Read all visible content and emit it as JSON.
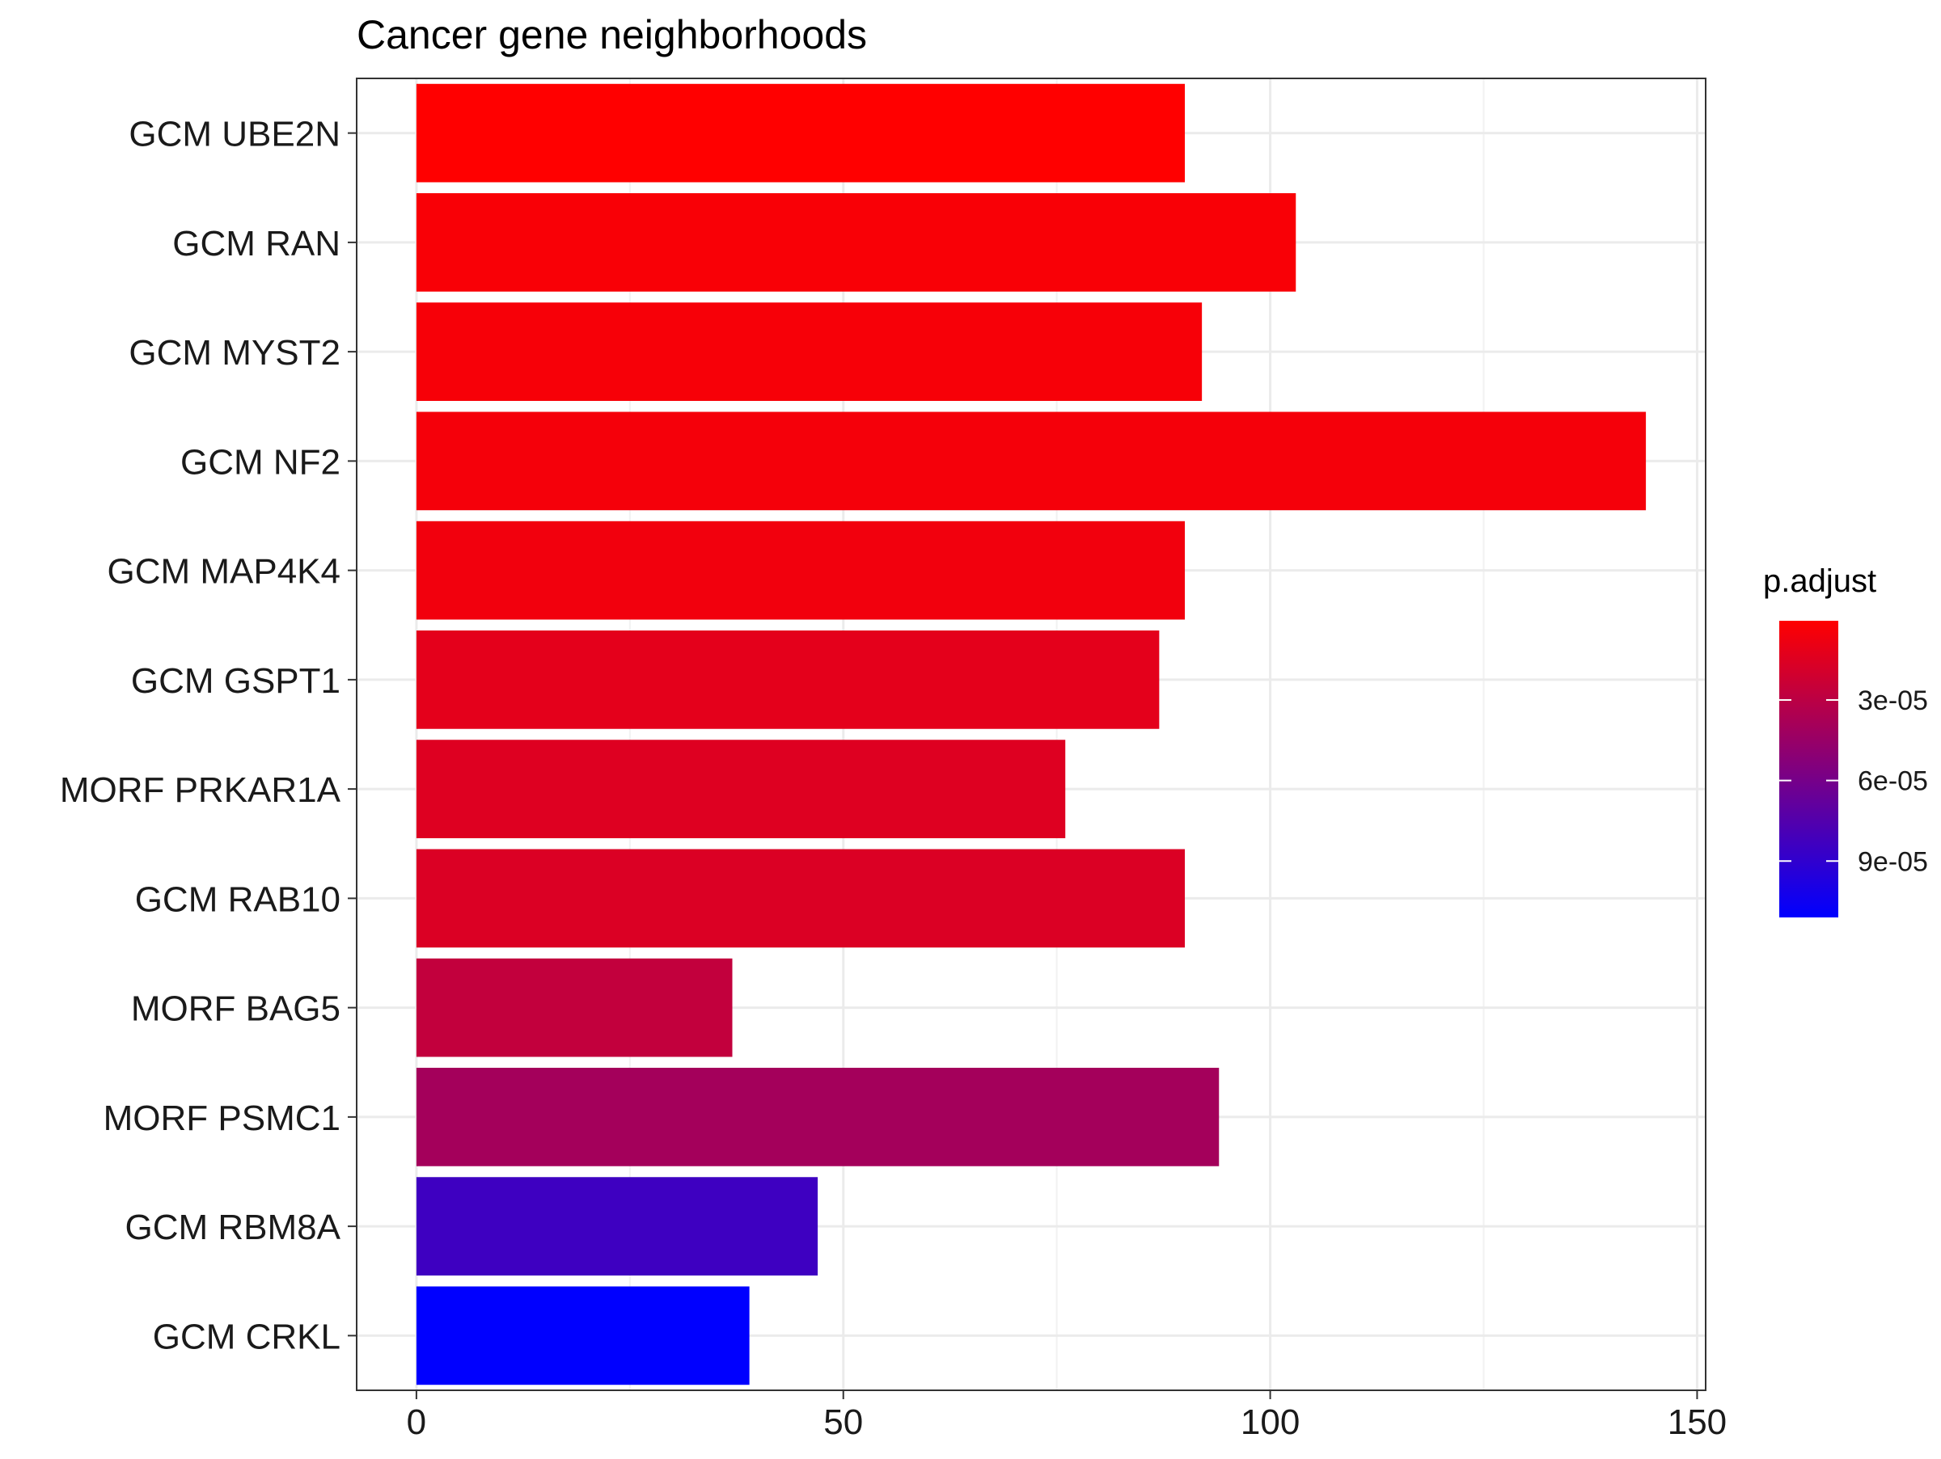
{
  "chart_data": {
    "type": "bar",
    "orientation": "horizontal",
    "title": "Cancer gene neighborhoods",
    "xlabel": "",
    "ylabel": "",
    "categories": [
      "GCM UBE2N",
      "GCM RAN",
      "GCM MYST2",
      "GCM NF2",
      "GCM MAP4K4",
      "GCM GSPT1",
      "MORF PRKAR1A",
      "GCM RAB10",
      "MORF BAG5",
      "MORF PSMC1",
      "GCM RBM8A",
      "GCM CRKL"
    ],
    "values": [
      90,
      103,
      92,
      144,
      90,
      87,
      76,
      90,
      37,
      94,
      47,
      39
    ],
    "p_adjust": [
      5e-07,
      3e-06,
      4e-06,
      5e-06,
      6e-06,
      1.2e-05,
      1.5e-05,
      1.6e-05,
      2.7e-05,
      4e-05,
      8.4e-05,
      0.000111
    ],
    "xlim": [
      -7,
      151
    ],
    "xticks": [
      0,
      50,
      100,
      150
    ],
    "grid": true,
    "legend": {
      "title": "p.adjust",
      "position": "right",
      "range": [
        5e-07,
        0.000111
      ],
      "ticks": [
        3e-05,
        6e-05,
        9e-05
      ],
      "tick_labels": [
        "3e-05",
        "6e-05",
        "9e-05"
      ],
      "low_color": "#ff0000",
      "high_color": "#0000ff"
    }
  }
}
